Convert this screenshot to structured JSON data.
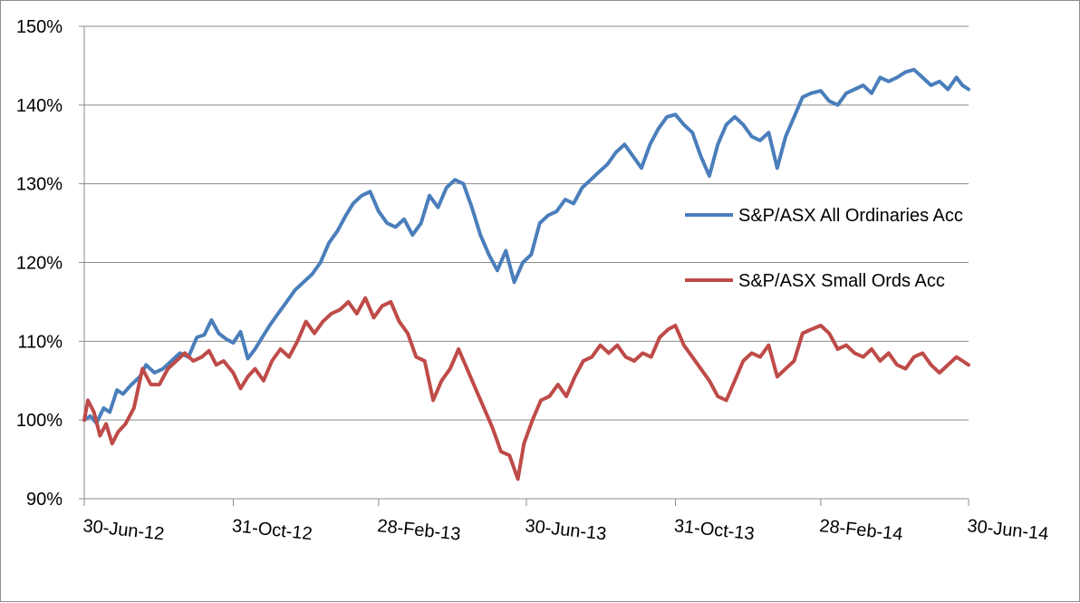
{
  "chart_data": {
    "type": "line",
    "title": "",
    "xlabel": "",
    "ylabel": "",
    "ylim": [
      90,
      150
    ],
    "y_ticks": [
      90,
      100,
      110,
      120,
      130,
      140,
      150
    ],
    "y_tick_format": "percent",
    "x_range": [
      "2012-06-30",
      "2014-06-30"
    ],
    "x_ticks": [
      {
        "date": "2012-06-30",
        "label": "30-Jun-12"
      },
      {
        "date": "2012-10-31",
        "label": "31-Oct-12"
      },
      {
        "date": "2013-02-28",
        "label": "28-Feb-13"
      },
      {
        "date": "2013-06-30",
        "label": "30-Jun-13"
      },
      {
        "date": "2013-10-31",
        "label": "31-Oct-13"
      },
      {
        "date": "2014-02-28",
        "label": "28-Feb-14"
      },
      {
        "date": "2014-06-30",
        "label": "30-Jun-14"
      }
    ],
    "grid": "horizontal",
    "legend_position": "right",
    "series": [
      {
        "name": "S&P/ASX All Ordinaries Acc",
        "color": "#4a7ebb",
        "points": [
          [
            "2012-06-30",
            100.0
          ],
          [
            "2012-07-05",
            100.5
          ],
          [
            "2012-07-10",
            99.6
          ],
          [
            "2012-07-16",
            101.5
          ],
          [
            "2012-07-21",
            101.0
          ],
          [
            "2012-07-27",
            103.8
          ],
          [
            "2012-08-01",
            103.3
          ],
          [
            "2012-08-08",
            104.5
          ],
          [
            "2012-08-15",
            105.5
          ],
          [
            "2012-08-20",
            107.0
          ],
          [
            "2012-08-27",
            106.0
          ],
          [
            "2012-09-03",
            106.5
          ],
          [
            "2012-09-10",
            107.5
          ],
          [
            "2012-09-17",
            108.5
          ],
          [
            "2012-09-24",
            108.0
          ],
          [
            "2012-10-01",
            110.5
          ],
          [
            "2012-10-07",
            110.8
          ],
          [
            "2012-10-13",
            112.7
          ],
          [
            "2012-10-19",
            111.0
          ],
          [
            "2012-10-25",
            110.3
          ],
          [
            "2012-10-31",
            109.8
          ],
          [
            "2012-11-06",
            111.2
          ],
          [
            "2012-11-12",
            107.8
          ],
          [
            "2012-11-18",
            109.0
          ],
          [
            "2012-11-24",
            110.5
          ],
          [
            "2012-11-30",
            112.0
          ],
          [
            "2012-12-07",
            113.5
          ],
          [
            "2012-12-14",
            115.0
          ],
          [
            "2012-12-21",
            116.5
          ],
          [
            "2012-12-28",
            117.5
          ],
          [
            "2013-01-04",
            118.5
          ],
          [
            "2013-01-11",
            120.0
          ],
          [
            "2013-01-18",
            122.5
          ],
          [
            "2013-01-25",
            124.0
          ],
          [
            "2013-02-01",
            126.0
          ],
          [
            "2013-02-07",
            127.5
          ],
          [
            "2013-02-14",
            128.5
          ],
          [
            "2013-02-21",
            129.0
          ],
          [
            "2013-02-28",
            126.5
          ],
          [
            "2013-03-07",
            125.0
          ],
          [
            "2013-03-14",
            124.5
          ],
          [
            "2013-03-21",
            125.5
          ],
          [
            "2013-03-28",
            123.5
          ],
          [
            "2013-04-04",
            125.0
          ],
          [
            "2013-04-11",
            128.5
          ],
          [
            "2013-04-18",
            127.0
          ],
          [
            "2013-04-25",
            129.5
          ],
          [
            "2013-05-02",
            130.5
          ],
          [
            "2013-05-09",
            130.0
          ],
          [
            "2013-05-16",
            127.0
          ],
          [
            "2013-05-23",
            123.5
          ],
          [
            "2013-05-30",
            121.0
          ],
          [
            "2013-06-06",
            119.0
          ],
          [
            "2013-06-13",
            121.5
          ],
          [
            "2013-06-20",
            117.5
          ],
          [
            "2013-06-27",
            120.0
          ],
          [
            "2013-07-04",
            121.0
          ],
          [
            "2013-07-11",
            125.0
          ],
          [
            "2013-07-18",
            126.0
          ],
          [
            "2013-07-25",
            126.5
          ],
          [
            "2013-08-01",
            128.0
          ],
          [
            "2013-08-08",
            127.5
          ],
          [
            "2013-08-15",
            129.5
          ],
          [
            "2013-08-22",
            130.5
          ],
          [
            "2013-08-29",
            131.5
          ],
          [
            "2013-09-05",
            132.5
          ],
          [
            "2013-09-12",
            134.0
          ],
          [
            "2013-09-19",
            135.0
          ],
          [
            "2013-09-26",
            133.5
          ],
          [
            "2013-10-03",
            132.0
          ],
          [
            "2013-10-10",
            135.0
          ],
          [
            "2013-10-17",
            137.0
          ],
          [
            "2013-10-24",
            138.5
          ],
          [
            "2013-10-31",
            138.8
          ],
          [
            "2013-11-07",
            137.5
          ],
          [
            "2013-11-14",
            136.5
          ],
          [
            "2013-11-21",
            133.5
          ],
          [
            "2013-11-28",
            131.0
          ],
          [
            "2013-12-05",
            135.0
          ],
          [
            "2013-12-12",
            137.5
          ],
          [
            "2013-12-19",
            138.5
          ],
          [
            "2013-12-26",
            137.5
          ],
          [
            "2014-01-02",
            136.0
          ],
          [
            "2014-01-09",
            135.5
          ],
          [
            "2014-01-16",
            136.5
          ],
          [
            "2014-01-23",
            132.0
          ],
          [
            "2014-01-30",
            136.0
          ],
          [
            "2014-02-06",
            138.5
          ],
          [
            "2014-02-13",
            141.0
          ],
          [
            "2014-02-20",
            141.5
          ],
          [
            "2014-02-28",
            141.8
          ],
          [
            "2014-03-07",
            140.5
          ],
          [
            "2014-03-14",
            140.0
          ],
          [
            "2014-03-21",
            141.5
          ],
          [
            "2014-03-28",
            142.0
          ],
          [
            "2014-04-04",
            142.5
          ],
          [
            "2014-04-11",
            141.5
          ],
          [
            "2014-04-18",
            143.5
          ],
          [
            "2014-04-25",
            143.0
          ],
          [
            "2014-05-02",
            143.5
          ],
          [
            "2014-05-09",
            144.2
          ],
          [
            "2014-05-16",
            144.5
          ],
          [
            "2014-05-23",
            143.5
          ],
          [
            "2014-05-30",
            142.5
          ],
          [
            "2014-06-06",
            143.0
          ],
          [
            "2014-06-13",
            142.0
          ],
          [
            "2014-06-20",
            143.5
          ],
          [
            "2014-06-25",
            142.5
          ],
          [
            "2014-06-30",
            142.0
          ]
        ]
      },
      {
        "name": "S&P/ASX Small Ords Acc",
        "color": "#be4b48",
        "points": [
          [
            "2012-06-30",
            100.0
          ],
          [
            "2012-07-03",
            102.5
          ],
          [
            "2012-07-08",
            101.0
          ],
          [
            "2012-07-13",
            98.0
          ],
          [
            "2012-07-18",
            99.5
          ],
          [
            "2012-07-23",
            97.0
          ],
          [
            "2012-07-28",
            98.5
          ],
          [
            "2012-08-03",
            99.5
          ],
          [
            "2012-08-10",
            101.5
          ],
          [
            "2012-08-17",
            106.5
          ],
          [
            "2012-08-24",
            104.5
          ],
          [
            "2012-08-31",
            104.5
          ],
          [
            "2012-09-07",
            106.5
          ],
          [
            "2012-09-14",
            107.5
          ],
          [
            "2012-09-21",
            108.5
          ],
          [
            "2012-09-28",
            107.5
          ],
          [
            "2012-10-05",
            108.0
          ],
          [
            "2012-10-11",
            108.8
          ],
          [
            "2012-10-17",
            107.0
          ],
          [
            "2012-10-23",
            107.5
          ],
          [
            "2012-10-31",
            106.0
          ],
          [
            "2012-11-06",
            104.0
          ],
          [
            "2012-11-12",
            105.5
          ],
          [
            "2012-11-18",
            106.5
          ],
          [
            "2012-11-25",
            105.0
          ],
          [
            "2012-12-02",
            107.5
          ],
          [
            "2012-12-09",
            109.0
          ],
          [
            "2012-12-16",
            108.0
          ],
          [
            "2012-12-23",
            110.0
          ],
          [
            "2012-12-30",
            112.5
          ],
          [
            "2013-01-06",
            111.0
          ],
          [
            "2013-01-13",
            112.5
          ],
          [
            "2013-01-20",
            113.5
          ],
          [
            "2013-01-27",
            114.0
          ],
          [
            "2013-02-03",
            115.0
          ],
          [
            "2013-02-10",
            113.5
          ],
          [
            "2013-02-17",
            115.5
          ],
          [
            "2013-02-24",
            113.0
          ],
          [
            "2013-03-03",
            114.5
          ],
          [
            "2013-03-10",
            115.0
          ],
          [
            "2013-03-17",
            112.5
          ],
          [
            "2013-03-24",
            111.0
          ],
          [
            "2013-03-31",
            108.0
          ],
          [
            "2013-04-07",
            107.5
          ],
          [
            "2013-04-14",
            102.5
          ],
          [
            "2013-04-21",
            105.0
          ],
          [
            "2013-04-28",
            106.5
          ],
          [
            "2013-05-05",
            109.0
          ],
          [
            "2013-05-12",
            106.5
          ],
          [
            "2013-05-19",
            104.0
          ],
          [
            "2013-05-26",
            101.5
          ],
          [
            "2013-06-02",
            99.0
          ],
          [
            "2013-06-09",
            96.0
          ],
          [
            "2013-06-16",
            95.5
          ],
          [
            "2013-06-23",
            92.5
          ],
          [
            "2013-06-28",
            97.0
          ],
          [
            "2013-07-05",
            100.0
          ],
          [
            "2013-07-12",
            102.5
          ],
          [
            "2013-07-19",
            103.0
          ],
          [
            "2013-07-26",
            104.5
          ],
          [
            "2013-08-02",
            103.0
          ],
          [
            "2013-08-09",
            105.5
          ],
          [
            "2013-08-16",
            107.5
          ],
          [
            "2013-08-23",
            108.0
          ],
          [
            "2013-08-30",
            109.5
          ],
          [
            "2013-09-06",
            108.5
          ],
          [
            "2013-09-13",
            109.5
          ],
          [
            "2013-09-20",
            108.0
          ],
          [
            "2013-09-27",
            107.5
          ],
          [
            "2013-10-04",
            108.5
          ],
          [
            "2013-10-11",
            108.0
          ],
          [
            "2013-10-18",
            110.5
          ],
          [
            "2013-10-25",
            111.5
          ],
          [
            "2013-10-31",
            112.0
          ],
          [
            "2013-11-07",
            109.5
          ],
          [
            "2013-11-14",
            108.0
          ],
          [
            "2013-11-21",
            106.5
          ],
          [
            "2013-11-28",
            105.0
          ],
          [
            "2013-12-05",
            103.0
          ],
          [
            "2013-12-12",
            102.5
          ],
          [
            "2013-12-19",
            105.0
          ],
          [
            "2013-12-26",
            107.5
          ],
          [
            "2014-01-02",
            108.5
          ],
          [
            "2014-01-09",
            108.0
          ],
          [
            "2014-01-16",
            109.5
          ],
          [
            "2014-01-23",
            105.5
          ],
          [
            "2014-01-30",
            106.5
          ],
          [
            "2014-02-06",
            107.5
          ],
          [
            "2014-02-13",
            111.0
          ],
          [
            "2014-02-20",
            111.5
          ],
          [
            "2014-02-28",
            112.0
          ],
          [
            "2014-03-07",
            111.0
          ],
          [
            "2014-03-14",
            109.0
          ],
          [
            "2014-03-21",
            109.5
          ],
          [
            "2014-03-28",
            108.5
          ],
          [
            "2014-04-04",
            108.0
          ],
          [
            "2014-04-11",
            109.0
          ],
          [
            "2014-04-18",
            107.5
          ],
          [
            "2014-04-25",
            108.5
          ],
          [
            "2014-05-02",
            107.0
          ],
          [
            "2014-05-09",
            106.5
          ],
          [
            "2014-05-16",
            108.0
          ],
          [
            "2014-05-23",
            108.5
          ],
          [
            "2014-05-30",
            107.0
          ],
          [
            "2014-06-06",
            106.0
          ],
          [
            "2014-06-13",
            107.0
          ],
          [
            "2014-06-20",
            108.0
          ],
          [
            "2014-06-25",
            107.5
          ],
          [
            "2014-06-30",
            107.0
          ]
        ]
      }
    ]
  }
}
